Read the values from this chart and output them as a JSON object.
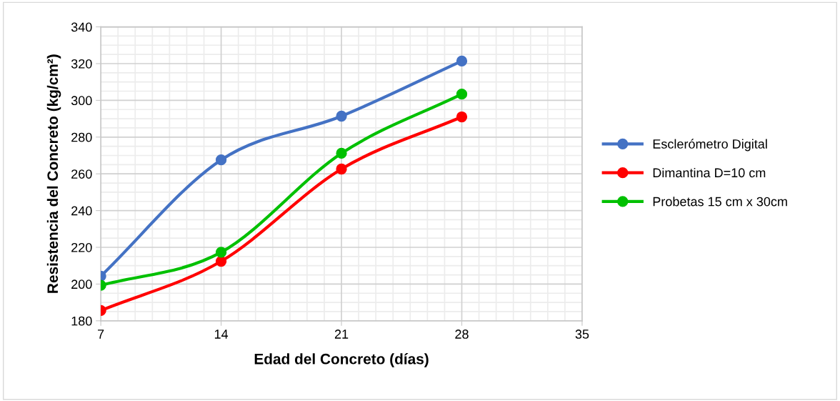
{
  "chart_data": {
    "type": "line",
    "xlabel": "Edad del Concreto (días)",
    "ylabel": "Resistencia del Concreto (kg/cm²)",
    "x": [
      7,
      14,
      21,
      28
    ],
    "series": [
      {
        "name": "Esclerómetro Digital",
        "color": "#4472c4",
        "values": [
          204.3,
          267.6,
          291.4,
          321.4
        ]
      },
      {
        "name": "Dimantina D=10 cm",
        "color": "#ff0000",
        "values": [
          185.6,
          212.4,
          262.6,
          291.0
        ]
      },
      {
        "name": "Probetas 15 cm x 30cm",
        "color": "#00c000",
        "values": [
          199.3,
          217.3,
          271.2,
          303.4
        ]
      }
    ],
    "xlim": [
      7,
      35
    ],
    "xticks": [
      7,
      14,
      21,
      28,
      35
    ],
    "ylim": [
      180,
      340
    ],
    "yticks": [
      180,
      200,
      220,
      240,
      260,
      280,
      300,
      320,
      340
    ],
    "grid": true,
    "legend": "right",
    "marker": "circle",
    "line_style": "solid"
  }
}
